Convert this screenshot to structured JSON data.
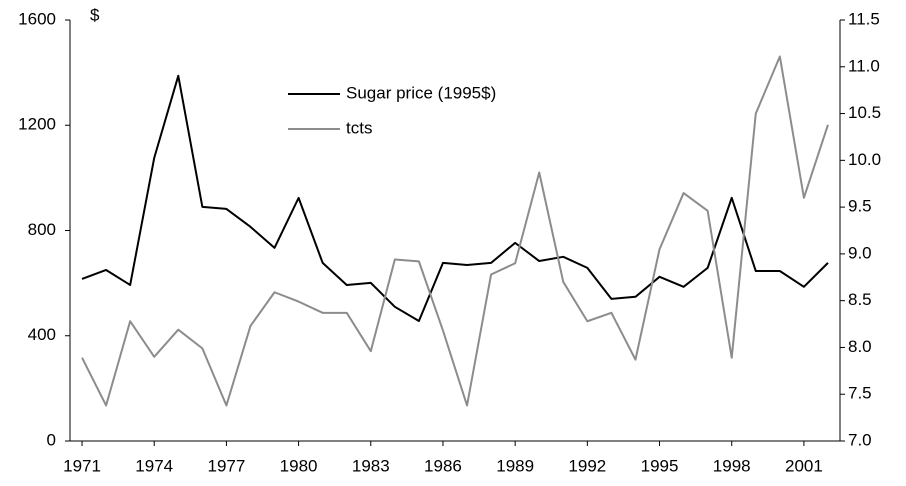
{
  "chart_data": {
    "type": "line",
    "y_axis_label": "$",
    "x": [
      1971,
      1972,
      1973,
      1974,
      1975,
      1976,
      1977,
      1978,
      1979,
      1980,
      1981,
      1982,
      1983,
      1984,
      1985,
      1986,
      1987,
      1988,
      1989,
      1990,
      1991,
      1992,
      1993,
      1994,
      1995,
      1996,
      1997,
      1998,
      1999,
      2000,
      2001,
      2002
    ],
    "series": [
      {
        "name": "Sugar price (1995$)",
        "color": "#000000",
        "axis": "y",
        "values": [
          616,
          650,
          593,
          1076,
          1388,
          890,
          882,
          814,
          734,
          924,
          677,
          593,
          601,
          510,
          456,
          677,
          669,
          677,
          753,
          684,
          700,
          658,
          540,
          548,
          624,
          586,
          658,
          924,
          646,
          646,
          586,
          677
        ]
      },
      {
        "name": "tcts",
        "color": "#8c8c8c",
        "axis": "y2",
        "values": [
          7.89,
          7.38,
          8.28,
          7.9,
          8.19,
          7.99,
          7.38,
          8.23,
          8.59,
          8.49,
          8.37,
          8.37,
          7.96,
          8.94,
          8.92,
          8.18,
          7.38,
          8.78,
          8.9,
          9.87,
          8.7,
          8.28,
          8.37,
          7.87,
          9.05,
          9.65,
          9.46,
          7.89,
          10.5,
          11.11,
          9.6,
          10.38
        ]
      }
    ],
    "xlim": [
      1970.5,
      2002.5
    ],
    "xticks": [
      1971,
      1974,
      1977,
      1980,
      1983,
      1986,
      1989,
      1992,
      1995,
      1998,
      2001
    ],
    "ylim": [
      0,
      1600
    ],
    "yticks": [
      0,
      400,
      800,
      1200,
      1600
    ],
    "y2lim": [
      7.0,
      11.5
    ],
    "y2ticks": [
      {
        "value": 7.0,
        "label": "7.0"
      },
      7.5,
      {
        "value": 8.0,
        "label": "8.0"
      },
      8.5,
      {
        "value": 9.0,
        "label": "9.0"
      },
      9.5,
      {
        "value": 10.0,
        "label": "10.0"
      },
      10.5,
      {
        "value": 11.0,
        "label": "11.0"
      },
      11.5
    ],
    "legend": "top-center",
    "grid": false
  }
}
